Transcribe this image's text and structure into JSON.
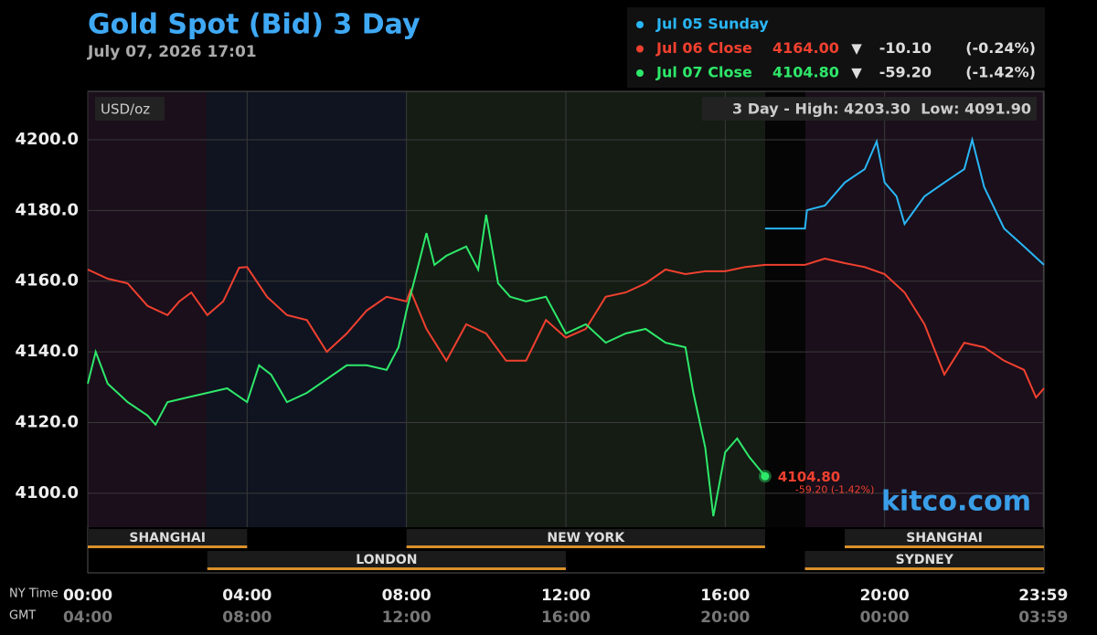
{
  "chart_data": {
    "type": "line",
    "title": "Gold Spot (Bid) 3 Day",
    "subtitle": "July 07, 2026 17:01",
    "y_unit": "USD/oz",
    "range_note": "3 Day - High: 4203.30  Low: 4091.90",
    "watermark": "kitco.com",
    "x_label_primary": "NY Time",
    "x_label_secondary": "GMT",
    "xlim": [
      0,
      24
    ],
    "ylim": [
      4090.4,
      4213.7
    ],
    "grid": true,
    "xticks": [
      {
        "value": 0,
        "label": "00:00"
      },
      {
        "value": 4,
        "label": "04:00"
      },
      {
        "value": 8,
        "label": "08:00"
      },
      {
        "value": 12,
        "label": "12:00"
      },
      {
        "value": 16,
        "label": "16:00"
      },
      {
        "value": 20,
        "label": "20:00"
      },
      {
        "value": 23.983,
        "label": "23:59"
      }
    ],
    "gmt_ticks": [
      "04:00",
      "08:00",
      "12:00",
      "16:00",
      "20:00",
      "00:00",
      "03:59"
    ],
    "yticks": [
      {
        "value": 4100,
        "label": "4100.0"
      },
      {
        "value": 4120,
        "label": "4120.0"
      },
      {
        "value": 4140,
        "label": "4140.0"
      },
      {
        "value": 4160,
        "label": "4160.0"
      },
      {
        "value": 4180,
        "label": "4180.0"
      },
      {
        "value": 4200,
        "label": "4200.0"
      }
    ],
    "sessions": [
      {
        "name": "SHANGHAI",
        "start": 0,
        "end": 4
      },
      {
        "name": "LONDON",
        "start": 3,
        "end": 12
      },
      {
        "name": "NEW YORK",
        "start": 8,
        "end": 17
      },
      {
        "name": "SHANGHAI",
        "start": 19,
        "end": 24
      },
      {
        "name": "SYDNEY",
        "start": 18,
        "end": 24
      }
    ],
    "series": [
      {
        "name": "Jul 05 Sunday",
        "color": "#29b6f6",
        "x": [
          17,
          18,
          18.05,
          18.5,
          19,
          19.5,
          19.8,
          20,
          20.3,
          20.5,
          21,
          21.5,
          22,
          22.2,
          22.5,
          23,
          23.5,
          24
        ],
        "values": [
          4174.9,
          4174.9,
          4180.1,
          4181.4,
          4187.9,
          4191.7,
          4199.5,
          4187.9,
          4184,
          4176.2,
          4184,
          4187.9,
          4191.7,
          4200,
          4186.6,
          4174.9,
          4169.8,
          4164.6
        ]
      },
      {
        "name": "Jul 06 Close",
        "color": "#f0402f",
        "close_label": "4164.00",
        "arrow": "▼",
        "change": "-10.10",
        "change_pct": "(-0.24%)",
        "x": [
          0,
          0.5,
          1,
          1.5,
          2,
          2.3,
          2.6,
          3,
          3.4,
          3.8,
          4,
          4.5,
          5,
          5.5,
          6,
          6.5,
          7,
          7.5,
          8,
          8.1,
          8.5,
          9,
          9.5,
          10,
          10.5,
          11,
          11.5,
          12,
          12.5,
          13,
          13.5,
          14,
          14.5,
          15,
          15.5,
          16,
          16.5,
          17,
          18,
          18.5,
          19,
          19.5,
          20,
          20.5,
          21,
          21.5,
          22,
          22.5,
          23,
          23.5,
          23.8,
          24
        ],
        "values": [
          4163.3,
          4160.7,
          4159.4,
          4153,
          4150.4,
          4154.3,
          4156.8,
          4150.4,
          4154.3,
          4163.8,
          4164,
          4155.6,
          4150.4,
          4149,
          4140,
          4145.2,
          4151.7,
          4155.6,
          4154.3,
          4157.4,
          4146.5,
          4137.5,
          4147.8,
          4145.2,
          4137.5,
          4137.5,
          4149,
          4144,
          4146.5,
          4155.6,
          4156.8,
          4159.4,
          4163.3,
          4162,
          4162.8,
          4162.8,
          4164,
          4164.6,
          4164.6,
          4166.4,
          4165.1,
          4164,
          4162,
          4156.8,
          4147.8,
          4133.6,
          4142.6,
          4141.3,
          4137.5,
          4134.9,
          4127.1,
          4129.7
        ]
      },
      {
        "name": "Jul 07 Close",
        "color": "#2ee86a",
        "close_label": "4104.80",
        "arrow": "▼",
        "change": "-59.20",
        "change_pct": "(-1.42%)",
        "x": [
          0,
          0.2,
          0.5,
          1,
          1.5,
          1.7,
          2,
          2.5,
          3,
          3.5,
          4,
          4.3,
          4.6,
          5,
          5.5,
          6,
          6.5,
          7,
          7.5,
          7.8,
          8,
          8.3,
          8.5,
          8.7,
          9,
          9.5,
          9.8,
          10,
          10.3,
          10.6,
          11,
          11.5,
          12,
          12.5,
          13,
          13.5,
          14,
          14.5,
          15,
          15.2,
          15.5,
          15.7,
          16,
          16.3,
          16.6,
          17
        ],
        "values": [
          4131,
          4140,
          4131,
          4125.8,
          4122,
          4119.4,
          4125.8,
          4127.1,
          4128.4,
          4129.7,
          4125.8,
          4136.2,
          4133.6,
          4125.8,
          4128.4,
          4132.3,
          4136.2,
          4136.2,
          4134.9,
          4141.3,
          4151.7,
          4164.6,
          4173.6,
          4164.6,
          4167.2,
          4169.8,
          4163.3,
          4178.8,
          4159.4,
          4155.6,
          4154.3,
          4155.6,
          4145.2,
          4147.8,
          4142.6,
          4145.2,
          4146.5,
          4142.6,
          4141.3,
          4128.4,
          4112.9,
          4093.5,
          4111.6,
          4115.5,
          4110.3,
          4104.8
        ]
      }
    ],
    "last_point": {
      "x": 17,
      "value": 4104.8,
      "label": "4104.80",
      "change_label": "-59.20 (-1.42%)"
    }
  }
}
